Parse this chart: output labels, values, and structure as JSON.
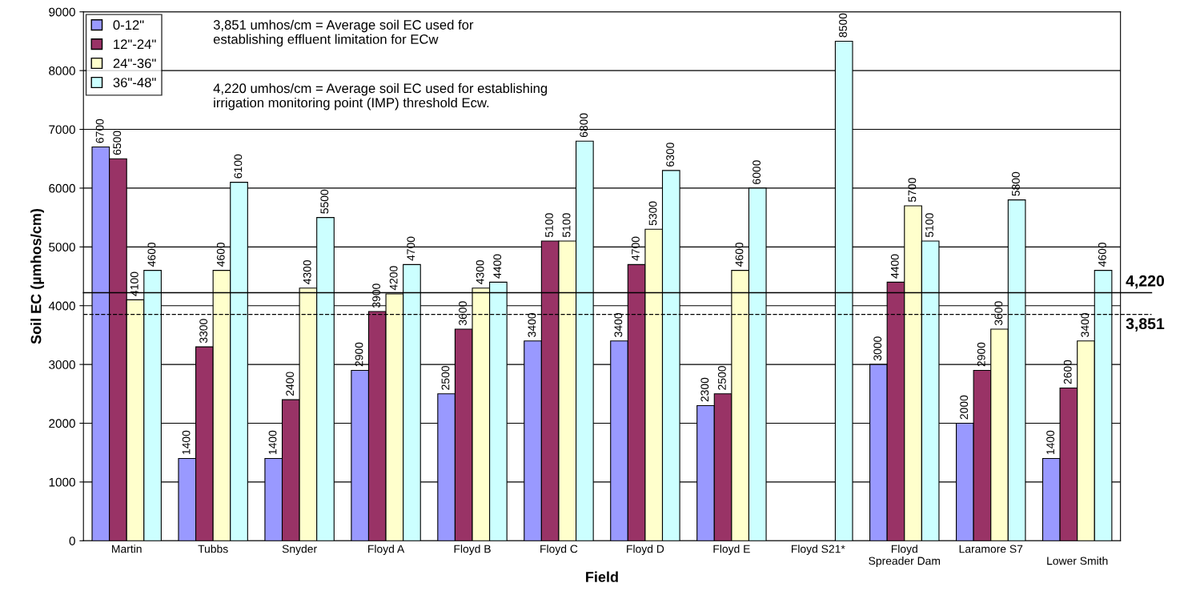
{
  "chart_data": {
    "type": "bar",
    "xlabel": "Field",
    "ylabel": "Soil EC (µmhos/cm)",
    "categories": [
      "Martin",
      "Tubbs",
      "Snyder",
      "Floyd A",
      "Floyd B",
      "Floyd C",
      "Floyd D",
      "Floyd E",
      "Floyd S21*",
      "Floyd\nSpreader Dam",
      "Laramore S7",
      "\nLower Smith"
    ],
    "series": [
      {
        "name": "0-12\"",
        "color": "#9999ff",
        "values": [
          6700,
          1400,
          1400,
          2900,
          2500,
          3400,
          3400,
          2300,
          null,
          3000,
          2000,
          1400
        ]
      },
      {
        "name": "12\"-24\"",
        "color": "#993366",
        "values": [
          6500,
          3300,
          2400,
          3900,
          3600,
          5100,
          4700,
          2500,
          null,
          4400,
          2900,
          2600
        ]
      },
      {
        "name": "24\"-36\"",
        "color": "#ffffcc",
        "values": [
          4100,
          4600,
          4300,
          4200,
          4300,
          5100,
          5300,
          4600,
          null,
          5700,
          3600,
          3400
        ]
      },
      {
        "name": "36\"-48\"",
        "color": "#ccffff",
        "values": [
          4600,
          6100,
          5500,
          4700,
          4400,
          6800,
          6300,
          6000,
          8500,
          5100,
          5800,
          4600
        ]
      }
    ],
    "ylim": [
      0,
      9000
    ],
    "yticks": [
      0,
      1000,
      2000,
      3000,
      4000,
      5000,
      6000,
      7000,
      8000,
      9000
    ],
    "grid": "y",
    "legend": "top left",
    "data_labels": true,
    "ref_lines": [
      {
        "axis": "y",
        "value": 4220,
        "label": "4,220",
        "line_style": "solid"
      },
      {
        "axis": "y",
        "value": 3851,
        "label": "3,851",
        "line_style": "dashed"
      }
    ],
    "annotations": [
      "3,851 umhos/cm = Average soil EC used for\nestablishing effluent limitation for ECw",
      "4,220 umhos/cm = Average soil EC used for establishing\nirrigation monitoring point (IMP) threshold Ecw."
    ]
  }
}
